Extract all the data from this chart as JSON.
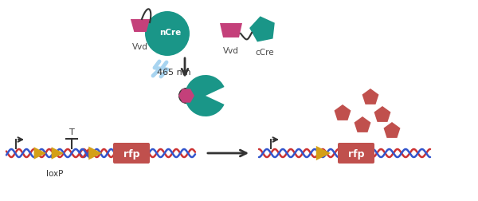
{
  "bg_color": "#ffffff",
  "vvd_color": "#c4407a",
  "ncre_color": "#1a9688",
  "rfp_color": "#c0504d",
  "gold_arrow": "#d4a017",
  "lightning_color": "#a8d4f0",
  "red_protein_color": "#c0504d",
  "dna_color1": "#cc3333",
  "dna_color2": "#3355cc",
  "line_color": "#333333",
  "label_color": "#444444",
  "vvd_label": "Vvd",
  "ncre_label": "nCre",
  "ccre_label": "cCre",
  "rfp_label": "rfp",
  "nm_label": "465 nm",
  "loxp_label": "loxP"
}
